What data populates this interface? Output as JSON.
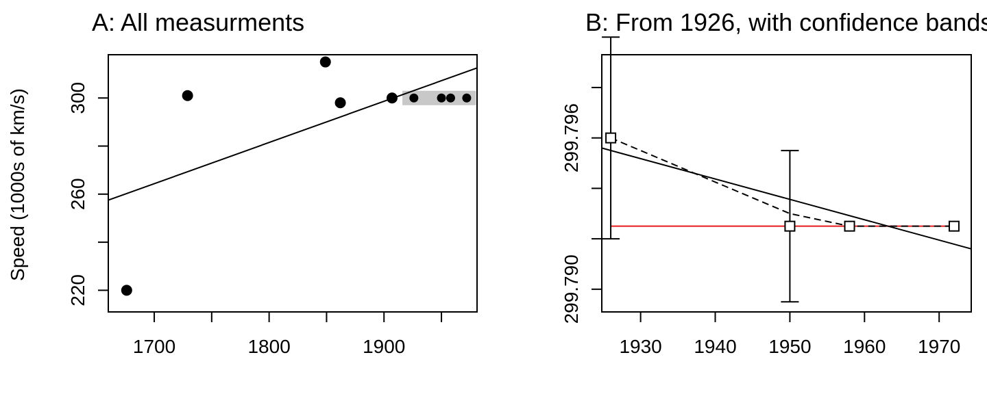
{
  "chart_data": [
    {
      "type": "scatter",
      "title": "A: All measurments",
      "ylabel": "Speed (1000s of km/s)",
      "xlabel": "",
      "xlim": [
        1660,
        1981
      ],
      "ylim": [
        211,
        318
      ],
      "x_ticks": [
        1700,
        1750,
        1800,
        1850,
        1900,
        1950
      ],
      "x_tick_labels": [
        "1700",
        "1800",
        "1900"
      ],
      "y_ticks": [
        220,
        240,
        260,
        280,
        300
      ],
      "y_tick_labels": [
        "220",
        "260",
        "300"
      ],
      "points": [
        {
          "x": 1676,
          "y": 220
        },
        {
          "x": 1729,
          "y": 301
        },
        {
          "x": 1849,
          "y": 315
        },
        {
          "x": 1862,
          "y": 298
        },
        {
          "x": 1907,
          "y": 300
        },
        {
          "x": 1926,
          "y": 300
        },
        {
          "x": 1950,
          "y": 300
        },
        {
          "x": 1958,
          "y": 300
        },
        {
          "x": 1972,
          "y": 300
        }
      ],
      "highlight_box": {
        "x": [
          1916,
          1980
        ],
        "y": [
          297,
          303
        ],
        "color": "#c8c8c8"
      },
      "fit_line": {
        "x": [
          1660,
          1981
        ],
        "y": [
          257.5,
          312.5
        ]
      },
      "grid": false,
      "legend": "none"
    },
    {
      "type": "line",
      "title": "B: From 1926, with confidence bands",
      "ylabel": "",
      "xlabel": "",
      "xlim": [
        1924.8,
        1974.3
      ],
      "ylim": [
        299.7891,
        299.7993
      ],
      "x_ticks": [
        1930,
        1940,
        1950,
        1960,
        1970
      ],
      "x_tick_labels": [
        "1930",
        "1940",
        "1950",
        "1960",
        "1970"
      ],
      "y_ticks": [
        299.79,
        299.792,
        299.794,
        299.796,
        299.798
      ],
      "y_tick_labels": [
        "299.790",
        "299.796"
      ],
      "points": [
        {
          "x": 1926,
          "y": 299.796,
          "lo": 299.792,
          "hi": 299.8
        },
        {
          "x": 1950,
          "y": 299.7925,
          "lo": 299.7895,
          "hi": 299.7955
        },
        {
          "x": 1958,
          "y": 299.7925
        },
        {
          "x": 1972,
          "y": 299.7925
        }
      ],
      "dashed_line": {
        "x": [
          1926,
          1950,
          1958,
          1972
        ],
        "y": [
          299.796,
          299.793,
          299.7925,
          299.7925
        ]
      },
      "fit_line": {
        "x": [
          1924.8,
          1974.3
        ],
        "y": [
          299.7956,
          299.7916
        ]
      },
      "reference_line": {
        "x": [
          1926,
          1972
        ],
        "y": [
          299.7925,
          299.7925
        ],
        "color": "#e41a1c"
      },
      "grid": false,
      "legend": "none"
    }
  ]
}
